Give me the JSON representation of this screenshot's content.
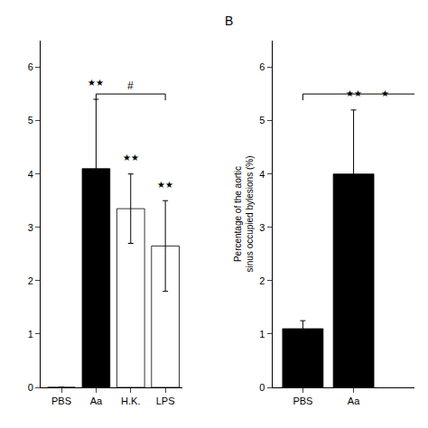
{
  "chart_data": [
    {
      "type": "bar",
      "categories": [
        "PBS",
        "Aa",
        "H.K.",
        "LPS"
      ],
      "values": [
        0.0,
        4.1,
        3.35,
        2.65
      ],
      "errors": [
        0.0,
        1.3,
        0.65,
        0.85
      ],
      "colors": [
        "#000000",
        "#000000",
        "#ffffff",
        "#ffffff"
      ],
      "xlim": [
        -0.6,
        3.5
      ],
      "ylim": [
        0,
        6.5
      ],
      "yticks": [
        0,
        1,
        2,
        3,
        4,
        5,
        6
      ],
      "grid": false,
      "annotations": [
        {
          "text": "★★",
          "x": 1,
          "y": 5.58
        },
        {
          "text": "★★",
          "x": 2,
          "y": 4.18
        },
        {
          "text": "★★",
          "x": 3,
          "y": 3.68
        }
      ],
      "brackets": [
        {
          "text": "#",
          "x1": 1,
          "x2": 3,
          "y": 5.5
        }
      ]
    },
    {
      "type": "bar",
      "title": "B",
      "ylabel": "Percentage of the aortic\nsinus occupied bylesions (%)",
      "categories": [
        "PBS",
        "Aa"
      ],
      "values": [
        1.1,
        4.0
      ],
      "errors": [
        0.15,
        1.2
      ],
      "colors": [
        "#000000",
        "#000000"
      ],
      "xlim": [
        -0.6,
        2.2
      ],
      "ylim": [
        0,
        6.5
      ],
      "yticks": [
        0,
        1,
        2,
        3,
        4,
        5,
        6
      ],
      "grid": false,
      "annotations": [
        {
          "text": "★★",
          "x": 1,
          "y": 5.38
        },
        {
          "text": "★",
          "x": 1.62,
          "y": 5.38
        }
      ],
      "brackets": [
        {
          "x1": 0,
          "x2": 2.3,
          "y": 5.5
        }
      ]
    }
  ]
}
